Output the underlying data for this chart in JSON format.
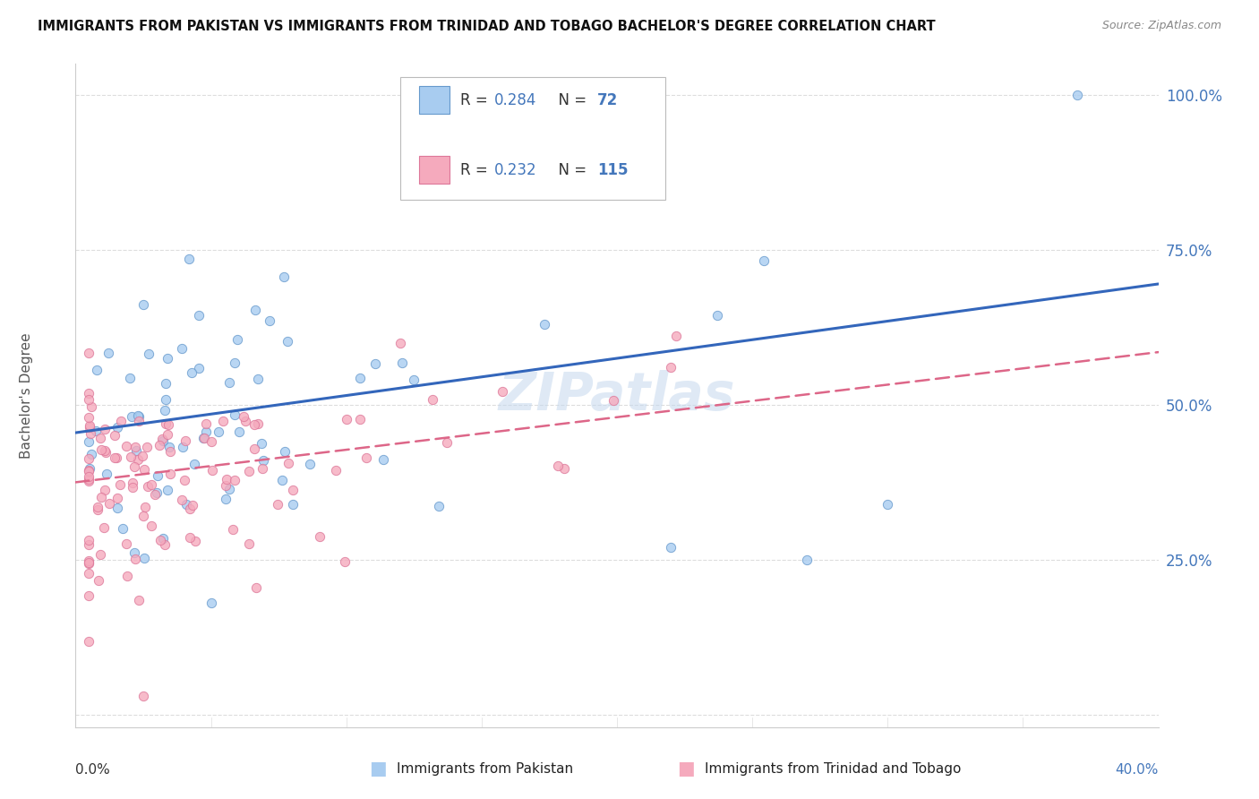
{
  "title": "IMMIGRANTS FROM PAKISTAN VS IMMIGRANTS FROM TRINIDAD AND TOBAGO BACHELOR'S DEGREE CORRELATION CHART",
  "source": "Source: ZipAtlas.com",
  "ylabel": "Bachelor's Degree",
  "ytick_values": [
    0.0,
    0.25,
    0.5,
    0.75,
    1.0
  ],
  "ytick_labels": [
    "",
    "25.0%",
    "50.0%",
    "75.0%",
    "100.0%"
  ],
  "xlim": [
    0.0,
    0.4
  ],
  "ylim": [
    -0.02,
    1.05
  ],
  "watermark": "ZIPatlas",
  "pak_R": 0.284,
  "pak_N": 72,
  "tt_R": 0.232,
  "tt_N": 115,
  "pak_color": "#A8CCF0",
  "pak_edge": "#6699CC",
  "pak_line_color": "#3366BB",
  "tt_color": "#F5AABD",
  "tt_edge": "#DD7799",
  "tt_line_color": "#DD6688",
  "legend_blue_fill": "#A8CCF0",
  "legend_blue_edge": "#6699CC",
  "legend_pink_fill": "#F5AABD",
  "legend_pink_edge": "#DD7799",
  "label_color": "#4477BB",
  "grid_color": "#DDDDDD",
  "bg_color": "#FFFFFF"
}
